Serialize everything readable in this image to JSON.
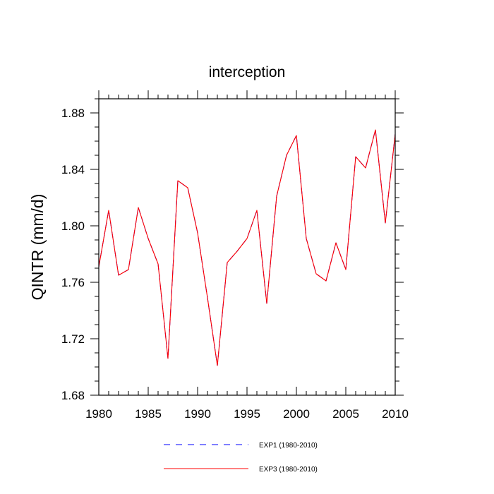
{
  "chart_data": {
    "type": "line",
    "title": "interception",
    "xlabel": "",
    "ylabel": "QINTR  (mm/d)",
    "xlim": [
      1980,
      2010
    ],
    "ylim": [
      1.68,
      1.89
    ],
    "xticks": [
      1980,
      1985,
      1990,
      1995,
      2000,
      2005,
      2010
    ],
    "xtick_labels": [
      "1980",
      "1985",
      "1990",
      "1995",
      "2000",
      "2005",
      "2010"
    ],
    "yticks": [
      1.68,
      1.72,
      1.76,
      1.8,
      1.84,
      1.88
    ],
    "ytick_labels": [
      "1.68",
      "1.72",
      "1.76",
      "1.80",
      "1.84",
      "1.88"
    ],
    "x": [
      1980,
      1981,
      1982,
      1983,
      1984,
      1985,
      1986,
      1987,
      1988,
      1989,
      1990,
      1991,
      1992,
      1993,
      1994,
      1995,
      1996,
      1997,
      1998,
      1999,
      2000,
      2001,
      2002,
      2003,
      2004,
      2005,
      2006,
      2007,
      2008,
      2009,
      2010
    ],
    "series": [
      {
        "name": "EXP1 (1980-2010)",
        "color": "#0000ff",
        "dash": "dashed",
        "values": [
          1.771,
          1.811,
          1.765,
          1.769,
          1.813,
          1.791,
          1.773,
          1.706,
          1.832,
          1.827,
          1.795,
          1.749,
          1.701,
          1.774,
          1.782,
          1.791,
          1.811,
          1.745,
          1.821,
          1.85,
          1.864,
          1.791,
          1.766,
          1.761,
          1.788,
          1.769,
          1.849,
          1.841,
          1.868,
          1.802,
          1.865
        ]
      },
      {
        "name": "EXP3 (1980-2010)",
        "color": "#ff0000",
        "dash": "solid",
        "values": [
          1.771,
          1.811,
          1.765,
          1.769,
          1.813,
          1.791,
          1.773,
          1.706,
          1.832,
          1.827,
          1.795,
          1.749,
          1.701,
          1.774,
          1.782,
          1.791,
          1.811,
          1.745,
          1.821,
          1.85,
          1.864,
          1.791,
          1.766,
          1.761,
          1.788,
          1.769,
          1.849,
          1.841,
          1.868,
          1.802,
          1.865
        ]
      }
    ],
    "legend": "bottom-center"
  }
}
